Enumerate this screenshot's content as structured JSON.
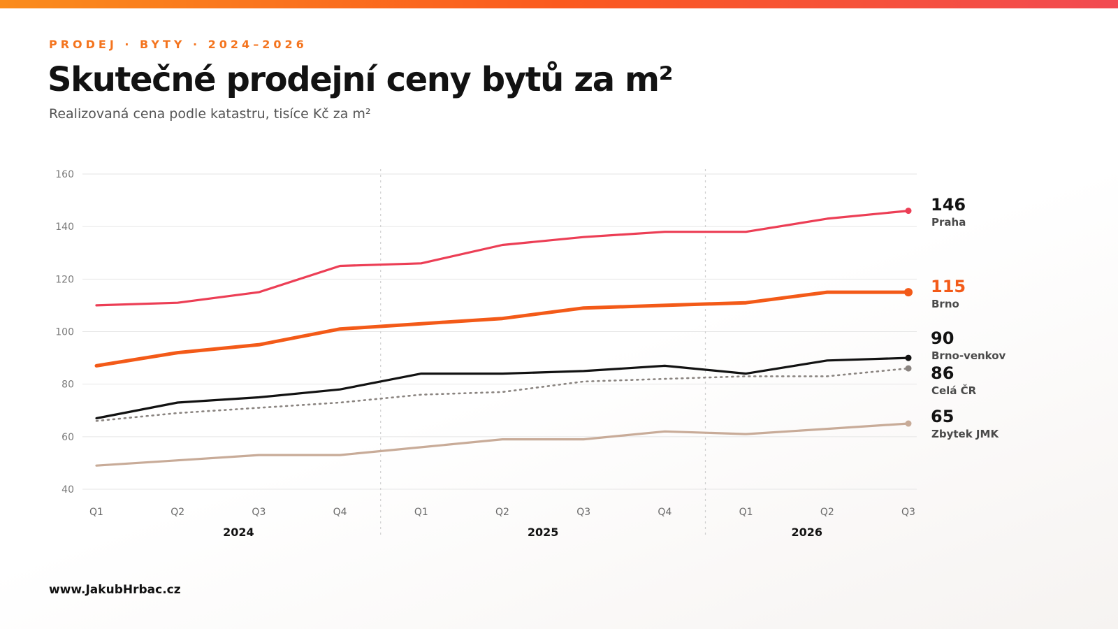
{
  "eyebrow": "PRODEJ · BYTY · 2024–2026",
  "title": "Skutečné prodejní ceny bytů za m²",
  "subtitle": "Realizovaná cena podle katastru, tisíce Kč za m²",
  "footer": "www.JakubHrbac.cz",
  "colors": {
    "accent": "#f4741e",
    "praha": "#ec3e55",
    "brno": "#f35a18",
    "brno_venkov": "#121212",
    "cela_cr": "#8a8480",
    "zbytek_jmk": "#c8ab98"
  },
  "chart_data": {
    "type": "line",
    "title": "Skutečné prodejní ceny bytů za m²",
    "subtitle": "Realizovaná cena podle katastru, tisíce Kč za m²",
    "ylim": [
      40,
      160
    ],
    "yticks": [
      "40",
      "60",
      "80",
      "100",
      "120",
      "140",
      "160"
    ],
    "grid": true,
    "categories": [
      "Q1",
      "Q2",
      "Q3",
      "Q4",
      "Q1",
      "Q2",
      "Q3",
      "Q4",
      "Q1",
      "Q2",
      "Q3"
    ],
    "years": [
      {
        "label": "2024",
        "quarters": [
          "Q1",
          "Q2",
          "Q3",
          "Q4"
        ]
      },
      {
        "label": "2025",
        "quarters": [
          "Q1",
          "Q2",
          "Q3",
          "Q4"
        ]
      },
      {
        "label": "2026",
        "quarters": [
          "Q1",
          "Q2",
          "Q3"
        ]
      }
    ],
    "legend": "right-end labels",
    "series": [
      {
        "name": "Praha",
        "end_label": "146",
        "color": "#ec3e55",
        "style": "solid",
        "values": [
          110,
          111,
          115,
          125,
          126,
          133,
          136,
          138,
          138,
          143,
          146
        ]
      },
      {
        "name": "Brno",
        "end_label": "115",
        "color": "#f35a18",
        "style": "bold",
        "values": [
          87,
          92,
          95,
          101,
          103,
          105,
          109,
          110,
          111,
          115,
          115
        ]
      },
      {
        "name": "Brno-venkov",
        "end_label": "90",
        "color": "#121212",
        "style": "solid",
        "values": [
          67,
          73,
          75,
          78,
          84,
          84,
          85,
          87,
          84,
          89,
          90
        ]
      },
      {
        "name": "Celá ČR",
        "end_label": "86",
        "color": "#8a8480",
        "style": "dotted",
        "values": [
          66,
          69,
          71,
          73,
          76,
          77,
          81,
          82,
          83,
          83,
          86
        ]
      },
      {
        "name": "Zbytek JMK",
        "end_label": "65",
        "color": "#c8ab98",
        "style": "solid",
        "values": [
          49,
          51,
          53,
          53,
          56,
          59,
          59,
          62,
          61,
          63,
          65
        ]
      }
    ]
  }
}
